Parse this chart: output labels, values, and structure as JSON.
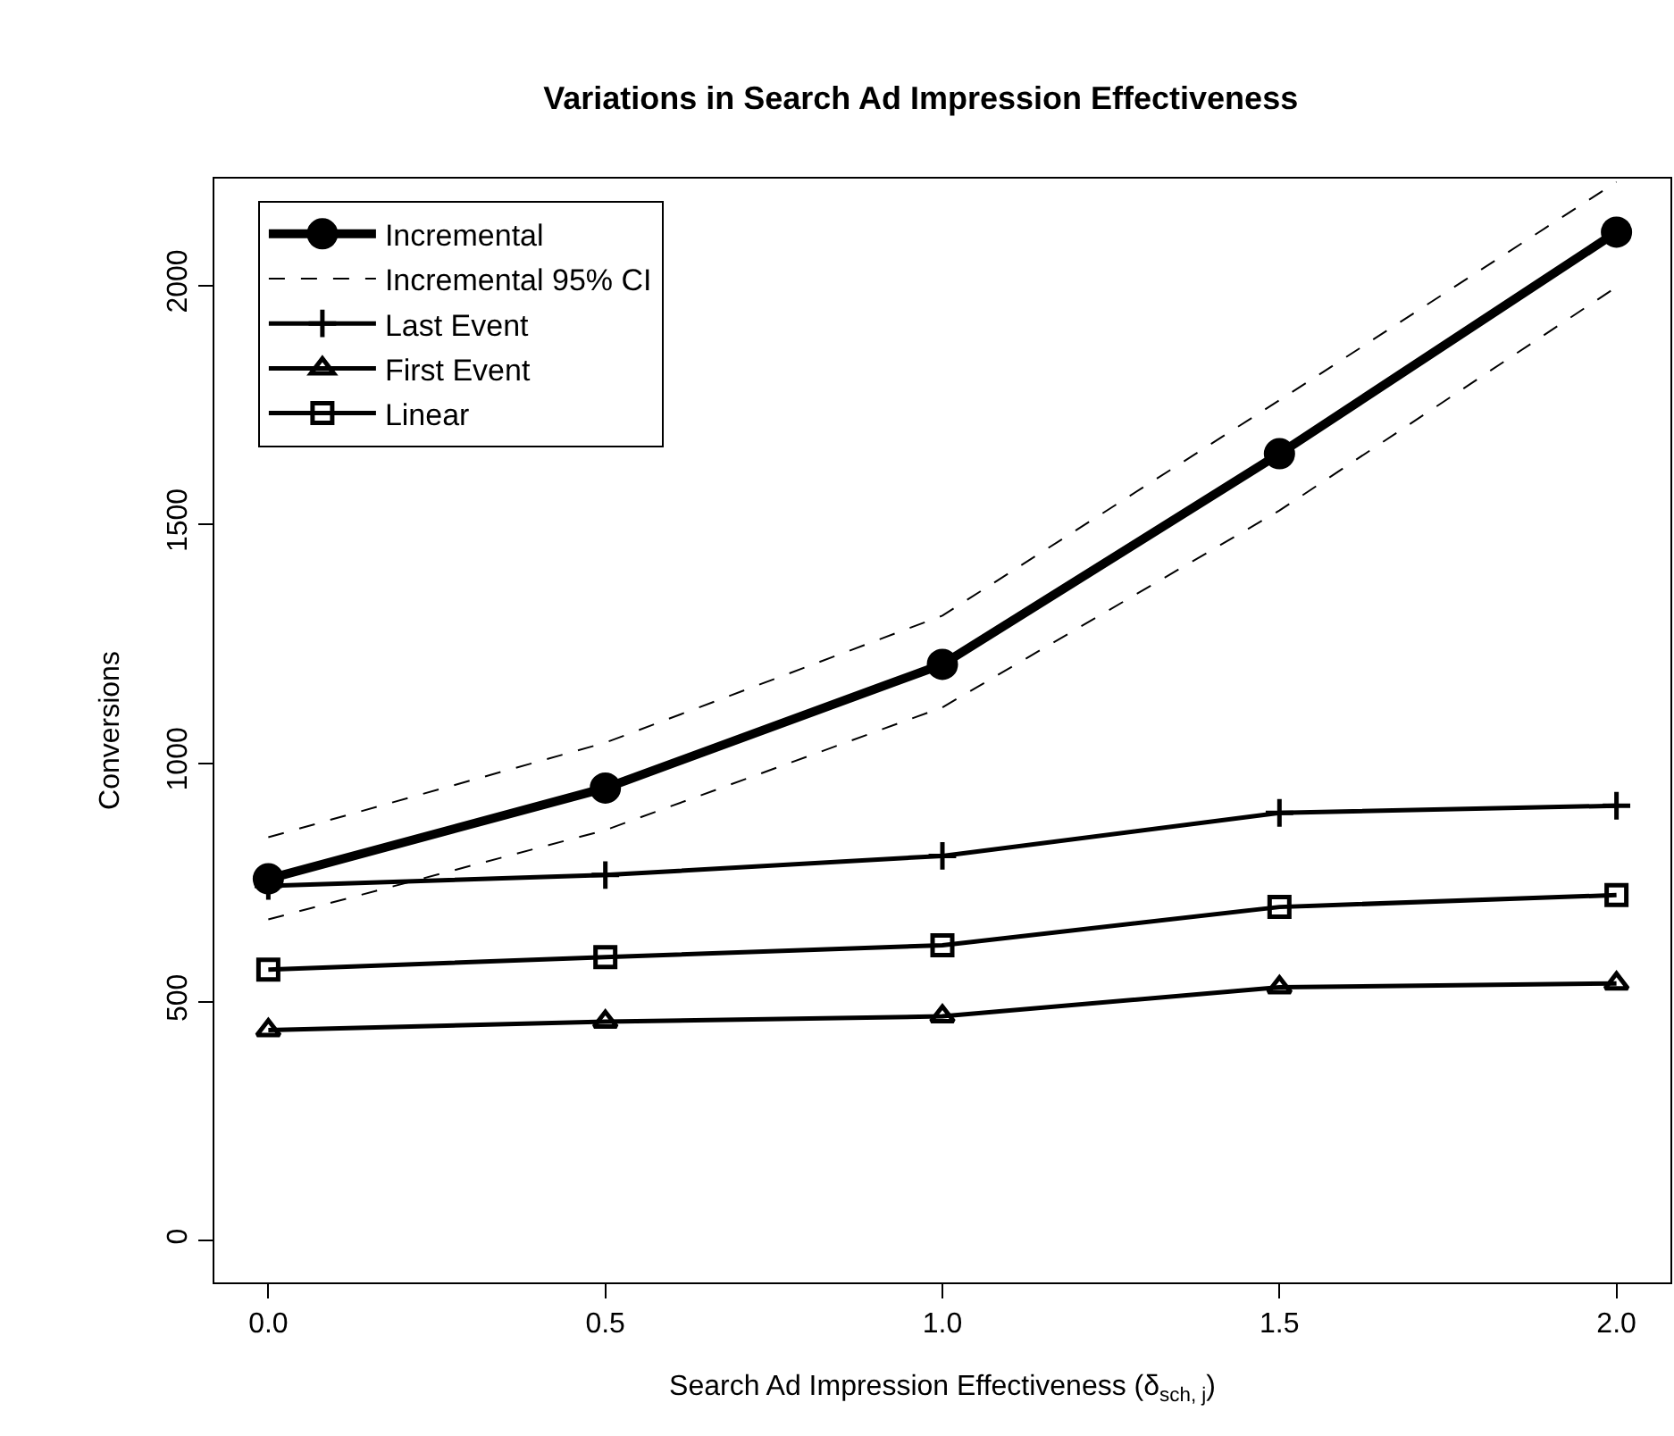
{
  "chart_data": {
    "type": "line",
    "title": "Variations in Search Ad Impression Effectiveness",
    "xlabel": "Search Ad Impression Effectiveness (δ$_{sch, j}$)",
    "ylabel": "Conversions",
    "x": [
      0,
      0.5,
      1,
      1.5,
      2
    ],
    "xlim": [
      -0.08,
      2.08
    ],
    "xticks": [
      {
        "value": 0,
        "label": "0.0"
      },
      {
        "value": 0.5,
        "label": "0.5"
      },
      {
        "value": 1,
        "label": "1.0"
      },
      {
        "value": 1.5,
        "label": "1.5"
      },
      {
        "value": 2,
        "label": "2.0"
      }
    ],
    "ylim": [
      -87,
      2224
    ],
    "yticks": [
      0,
      500,
      1000,
      1500,
      2000
    ],
    "grid": false,
    "legend": "top left",
    "series": [
      {
        "name": "Incremental",
        "color": "#000000",
        "marker": "circle",
        "line_style": "solid",
        "values": [
          758,
          948,
          1207,
          1648,
          2112
        ]
      },
      {
        "name": "Incremental 95% CI",
        "color": "#000000",
        "marker": "none",
        "line_style": "dashed",
        "values": [
          845,
          1043,
          1309,
          1760,
          2217
        ]
      },
      {
        "color": "#000000",
        "marker": "none",
        "line_style": "dashed",
        "values": [
          673,
          860,
          1117,
          1529,
          1997
        ]
      },
      {
        "name": "Last Event",
        "color": "#000000",
        "marker": "cross",
        "line_style": "solid",
        "values": [
          743,
          766,
          806,
          896,
          911
        ]
      },
      {
        "name": "First Event",
        "color": "#000000",
        "marker": "triangle",
        "line_style": "solid",
        "values": [
          441,
          459,
          470,
          531,
          539
        ]
      },
      {
        "name": "Linear",
        "color": "#000000",
        "marker": "square",
        "line_style": "solid",
        "values": [
          568,
          594,
          619,
          699,
          724
        ]
      }
    ]
  }
}
